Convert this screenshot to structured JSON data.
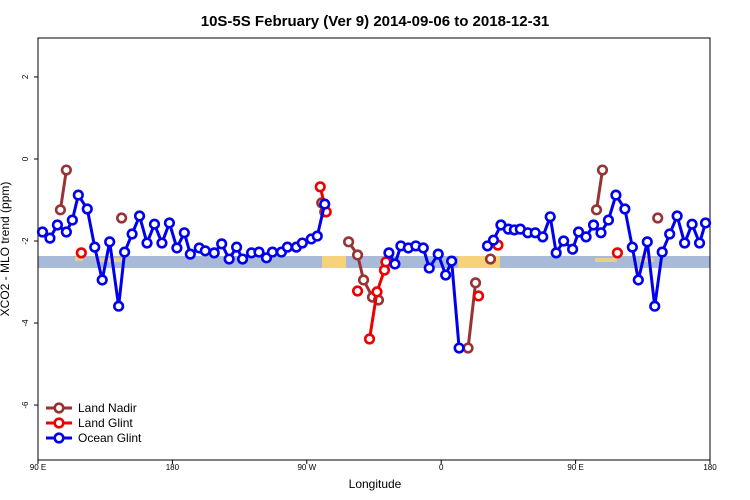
{
  "chart_data": {
    "type": "line",
    "title": "10S-5S February (Ver 9)   2014-09-06 to 2018-12-31",
    "x_label": "Longitude",
    "y_label": "XCO2 - MLO trend (ppm)",
    "xlim": [
      90,
      540
    ],
    "ylim": [
      -7.34,
      2.95
    ],
    "xticks": [
      {
        "value": 90,
        "label": "90 E"
      },
      180,
      {
        "value": 270,
        "label": "90 W"
      },
      {
        "value": 360,
        "label": "0"
      },
      {
        "value": 450,
        "label": "90 E"
      },
      {
        "value": 540,
        "label": "180"
      }
    ],
    "yticks": [
      2,
      0,
      -2,
      -4,
      -6
    ],
    "legend": "bottom-left",
    "series": [
      {
        "name": "Land Nadir",
        "color": "#993333",
        "x": [
          105,
          109,
          null,
          146,
          null,
          280,
          282,
          null,
          298,
          304,
          308,
          314,
          318,
          null,
          378,
          383,
          null,
          393,
          null,
          464,
          468,
          null,
          505
        ],
        "values": [
          -1.24,
          -0.27,
          null,
          -1.44,
          null,
          -1.07,
          -1.29,
          null,
          -2.02,
          -2.34,
          -2.95,
          -3.37,
          -3.44,
          null,
          -4.61,
          -3.02,
          null,
          -2.44,
          null,
          -1.24,
          -0.27,
          null,
          -1.44
        ]
      },
      {
        "name": "Land Glint",
        "color": "#ee0000",
        "x": [
          119,
          null,
          279,
          283,
          null,
          304,
          null,
          312,
          317,
          322,
          323,
          null,
          385,
          null,
          398,
          null,
          478
        ],
        "values": [
          -2.29,
          null,
          -0.68,
          -1.29,
          null,
          -3.22,
          null,
          -4.39,
          -3.24,
          -2.71,
          -2.51,
          null,
          -3.34,
          null,
          -2.1,
          null,
          -2.29
        ]
      },
      {
        "name": "Ocean Glint",
        "color": "#0000ee",
        "x": [
          93,
          98,
          103,
          109,
          113,
          117,
          123,
          128,
          133,
          138,
          144,
          148,
          153,
          158,
          163,
          168,
          173,
          178,
          183,
          188,
          192,
          198,
          202,
          208,
          213,
          218,
          223,
          227,
          233,
          238,
          243,
          247,
          253,
          257,
          263,
          267,
          273,
          277,
          282,
          null,
          325,
          329,
          333,
          338,
          343,
          348,
          352,
          358,
          363,
          367,
          372,
          null,
          391,
          395,
          400,
          405,
          409,
          413,
          418,
          423,
          428,
          433,
          437,
          442,
          448,
          452,
          457,
          462,
          467,
          472,
          477,
          483,
          488,
          492,
          498,
          503,
          508,
          513,
          518,
          523,
          528,
          533,
          537
        ],
        "values": [
          -1.78,
          -1.93,
          -1.61,
          -1.78,
          -1.49,
          -0.88,
          -1.22,
          -2.15,
          -2.95,
          -2.02,
          -3.59,
          -2.27,
          -1.83,
          -1.39,
          -2.05,
          -1.59,
          -2.05,
          -1.56,
          -2.17,
          -1.8,
          -2.32,
          -2.17,
          -2.24,
          -2.29,
          -2.07,
          -2.44,
          -2.15,
          -2.44,
          -2.29,
          -2.27,
          -2.41,
          -2.27,
          -2.27,
          -2.15,
          -2.15,
          -2.05,
          -1.95,
          -1.88,
          -1.1,
          null,
          -2.29,
          -2.56,
          -2.12,
          -2.17,
          -2.12,
          -2.17,
          -2.66,
          -2.32,
          -2.83,
          -2.49,
          -4.61,
          null,
          -2.12,
          -1.98,
          -1.61,
          -1.71,
          -1.73,
          -1.71,
          -1.8,
          -1.8,
          -1.9,
          -1.41,
          -2.29,
          -2.0,
          -2.2,
          -1.78,
          -1.9,
          -1.61,
          -1.8,
          -1.49,
          -0.88,
          -1.22,
          -2.15,
          -2.95,
          -2.02,
          -3.59,
          -2.27,
          -1.83,
          -1.39,
          -2.05,
          -1.59,
          -2.05,
          -1.56
        ]
      }
    ]
  }
}
